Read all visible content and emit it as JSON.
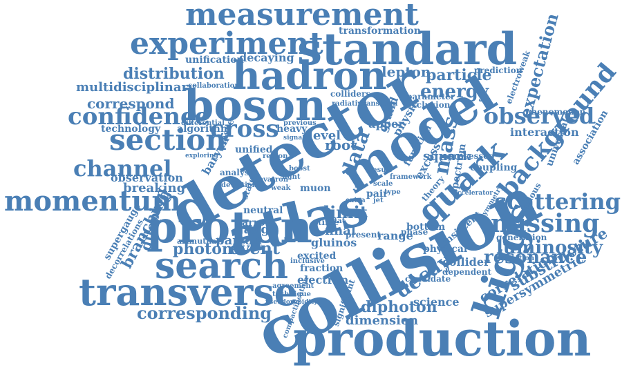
{
  "color": "#4a7fb5",
  "words": [
    "measurement",
    "standard",
    "experiment",
    "hadron",
    "boson",
    "detector",
    "model",
    "atlas",
    "section",
    "cross",
    "confidence",
    "channel",
    "momentum",
    "proton",
    "search",
    "transverse",
    "collision",
    "production",
    "higgs",
    "quark",
    "missing",
    "luminosity",
    "scattering",
    "background",
    "observed",
    "expectation",
    "distribution",
    "correspond",
    "multidisciplinary",
    "energy",
    "particle",
    "lepton",
    "decaying",
    "unification",
    "transformation",
    "resonance",
    "substructure",
    "correlation",
    "supersymmetric",
    "diphoton",
    "dimension",
    "corresponding",
    "decay",
    "event",
    "photon",
    "branching",
    "dilepton",
    "supergauge",
    "decorrelations",
    "gauge",
    "parton",
    "neutral",
    "narrow",
    "azimuthal",
    "breaking",
    "observation",
    "technology",
    "algorithm",
    "masse",
    "unified",
    "level",
    "root",
    "data",
    "mass",
    "squark",
    "interaction",
    "universal",
    "association",
    "electroweak",
    "prediction",
    "phenomenon",
    "collaboration",
    "colliders",
    "radiative",
    "parameter",
    "exclusion",
    "grand",
    "physic",
    "upper",
    "heavy",
    "previous",
    "differential",
    "exploring",
    "baryon",
    "muon",
    "limit",
    "final",
    "present",
    "range",
    "phase",
    "bottom",
    "physical",
    "consistent",
    "collider",
    "dependent",
    "candidate",
    "electron",
    "fraction",
    "excited",
    "gluinos",
    "science",
    "generation",
    "anomalous",
    "extraction",
    "function",
    "excess",
    "theory",
    "spectrum",
    "coupling",
    "processes",
    "agreement",
    "technique",
    "pseudorapidity",
    "compactification",
    "significant",
    "time",
    "stat",
    "pair",
    "result",
    "region",
    "extra",
    "inclusive",
    "transition",
    "deviation",
    "analysis",
    "state",
    "symmetry",
    "accelerator",
    "framework",
    "tau",
    "jet",
    "weak",
    "light",
    "type",
    "scale",
    "signal",
    "boost",
    "tevatron",
    "search",
    "double"
  ]
}
